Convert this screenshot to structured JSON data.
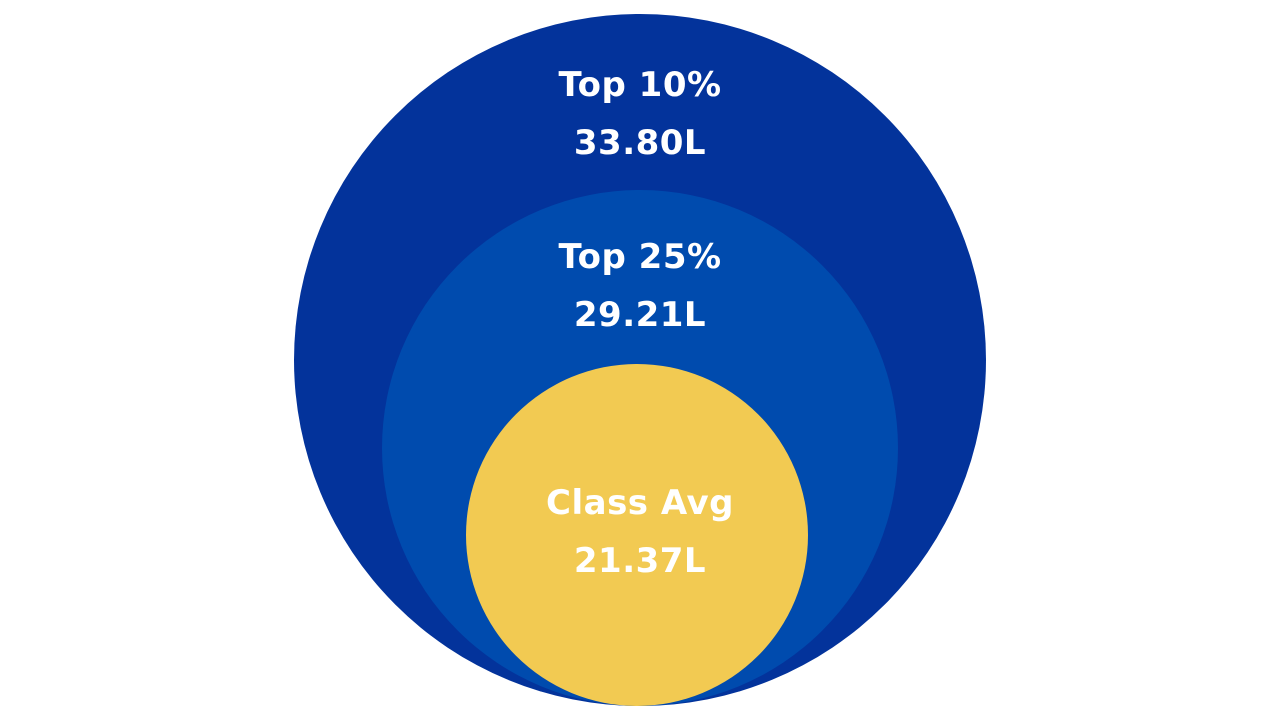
{
  "tiers": {
    "top10": {
      "label": "Top 10%",
      "value": "33.80L",
      "color": "#03339B"
    },
    "top25": {
      "label": "Top 25%",
      "value": "29.21L",
      "color": "#004BAE"
    },
    "class_avg": {
      "label": "Class Avg",
      "value": "21.37L",
      "color": "#F2CA52"
    }
  }
}
